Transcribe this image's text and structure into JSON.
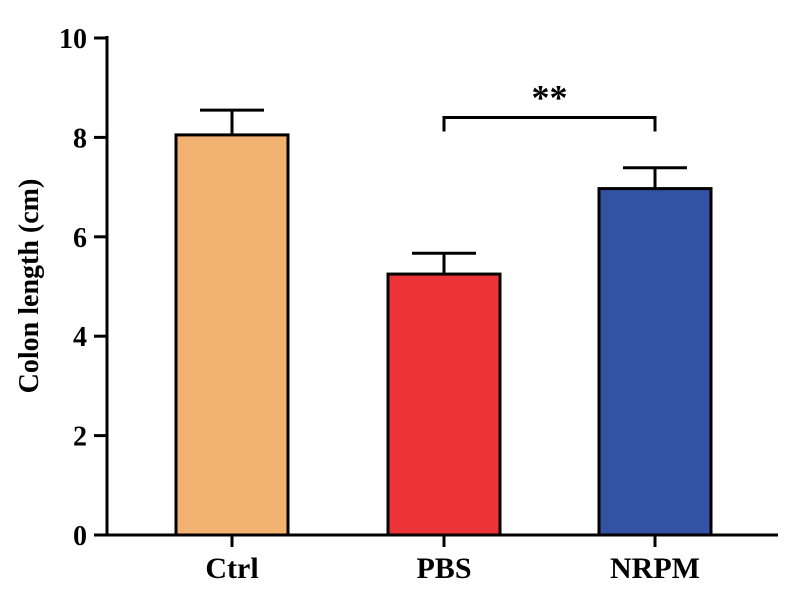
{
  "chart_data": {
    "type": "bar",
    "title": "",
    "xlabel": "",
    "ylabel": "Colon length (cm)",
    "ylim": [
      0,
      10
    ],
    "yticks": [
      0,
      2,
      4,
      6,
      8,
      10
    ],
    "ytick_labels": [
      "0",
      "2",
      "4",
      "6",
      "8",
      "10"
    ],
    "categories": [
      "Ctrl",
      "PBS",
      "NRPM"
    ],
    "values": [
      8.05,
      5.25,
      6.97
    ],
    "errors": [
      0.5,
      0.42,
      0.42
    ],
    "colors": [
      "#F2B271",
      "#EC3338",
      "#3452A4"
    ],
    "grid": false,
    "legend": "none",
    "annotations": [
      {
        "text": "**",
        "from_category": "PBS",
        "to_category": "NRPM",
        "y": 8.4
      }
    ]
  }
}
